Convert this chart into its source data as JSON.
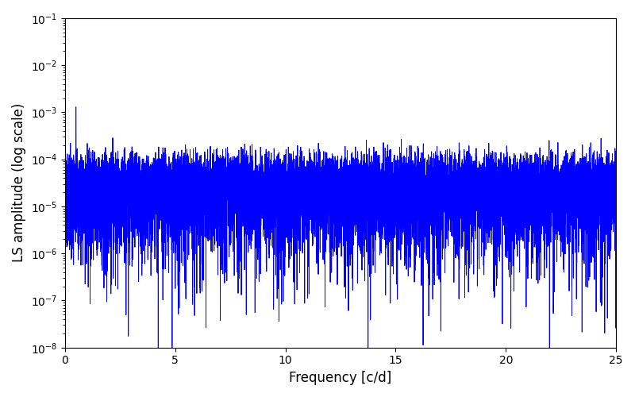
{
  "xlabel": "Frequency [c/d]",
  "ylabel": "LS amplitude (log scale)",
  "title": "",
  "xlim": [
    0,
    25
  ],
  "ylim": [
    1e-08,
    0.1
  ],
  "color": "#0000ff",
  "background_color": "#ffffff",
  "figsize": [
    8.0,
    5.0
  ],
  "dpi": 100,
  "linewidth": 0.7
}
